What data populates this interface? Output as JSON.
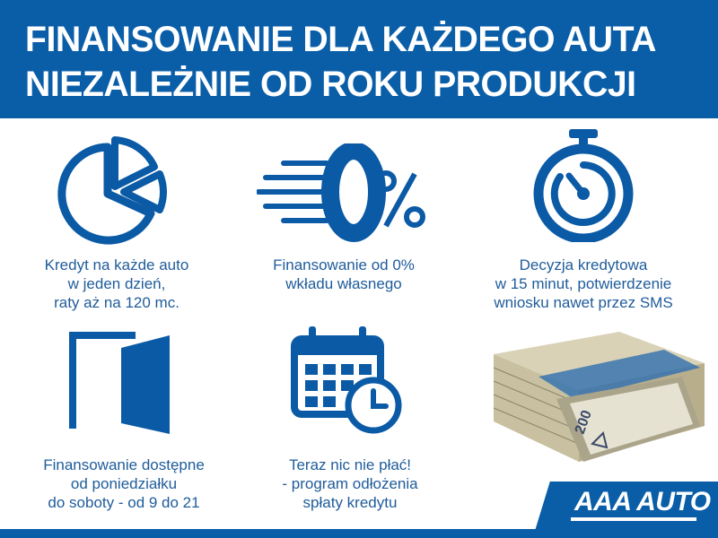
{
  "header": {
    "line1": "FINANSOWANIE DLA KAŻDEGO AUTA",
    "line2": "NIEZALEŻNIE OD ROKU PRODUKCJI"
  },
  "features": [
    {
      "icon": "pie-chart-icon",
      "lines": [
        "Kredyt na każde auto",
        "w jeden dzień,",
        "raty aż na 120 mc."
      ]
    },
    {
      "icon": "zero-percent-icon",
      "lines": [
        "Finansowanie od 0%",
        "wkładu własnego"
      ]
    },
    {
      "icon": "stopwatch-icon",
      "lines": [
        "Decyzja kredytowa",
        "w 15 minut, potwierdzenie",
        "wniosku nawet przez SMS"
      ]
    },
    {
      "icon": "open-door-icon",
      "lines": [
        "Finansowanie dostępne",
        "od poniedziałku",
        "do soboty - od 9 do 21"
      ]
    },
    {
      "icon": "calendar-clock-icon",
      "lines": [
        "Teraz nic nie płać!",
        "- program odłożenia",
        "spłaty kredytu"
      ]
    },
    {
      "icon": "banknotes-image"
    }
  ],
  "logo": {
    "text": "AAA AUTO"
  },
  "colors": {
    "brand_blue": "#0a5ea8",
    "text_blue": "#1f5c9a"
  }
}
